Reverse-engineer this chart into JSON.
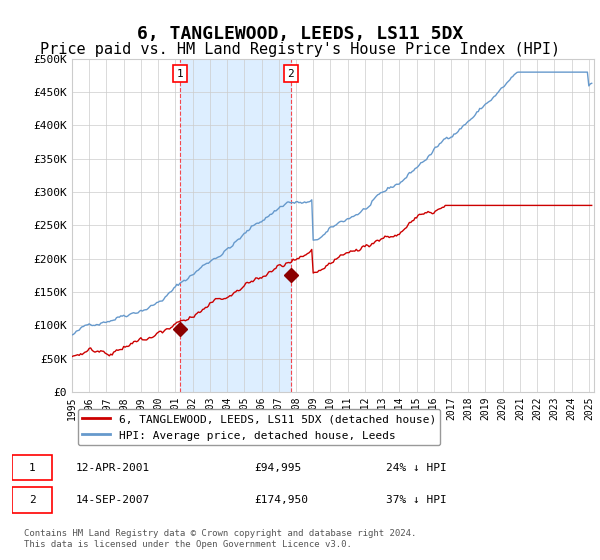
{
  "title": "6, TANGLEWOOD, LEEDS, LS11 5DX",
  "subtitle": "Price paid vs. HM Land Registry's House Price Index (HPI)",
  "title_fontsize": 13,
  "subtitle_fontsize": 11,
  "background_color": "#ffffff",
  "plot_bg_color": "#ffffff",
  "grid_color": "#cccccc",
  "hpi_line_color": "#6699cc",
  "price_line_color": "#cc0000",
  "marker_color": "#8b0000",
  "shaded_region_color": "#ddeeff",
  "sale1_date_num": 2001.28,
  "sale1_price": 94995,
  "sale1_label": "12-APR-2001",
  "sale1_pct": "24% ↓ HPI",
  "sale2_date_num": 2007.71,
  "sale2_price": 174950,
  "sale2_label": "14-SEP-2007",
  "sale2_pct": "37% ↓ HPI",
  "xmin": 1995,
  "xmax": 2025.3,
  "ymin": 0,
  "ymax": 500000,
  "yticks": [
    0,
    50000,
    100000,
    150000,
    200000,
    250000,
    300000,
    350000,
    400000,
    450000,
    500000
  ],
  "ytick_labels": [
    "£0",
    "£50K",
    "£100K",
    "£150K",
    "£200K",
    "£250K",
    "£300K",
    "£350K",
    "£400K",
    "£450K",
    "£500K"
  ],
  "xticks": [
    1995,
    1996,
    1997,
    1998,
    1999,
    2000,
    2001,
    2002,
    2003,
    2004,
    2005,
    2006,
    2007,
    2008,
    2009,
    2010,
    2011,
    2012,
    2013,
    2014,
    2015,
    2016,
    2017,
    2018,
    2019,
    2020,
    2021,
    2022,
    2023,
    2024,
    2025
  ],
  "legend_line1": "6, TANGLEWOOD, LEEDS, LS11 5DX (detached house)",
  "legend_line2": "HPI: Average price, detached house, Leeds",
  "footnote": "Contains HM Land Registry data © Crown copyright and database right 2024.\nThis data is licensed under the Open Government Licence v3.0.",
  "table_row1_num": "1",
  "table_row1_date": "12-APR-2001",
  "table_row1_price": "£94,995",
  "table_row1_pct": "24% ↓ HPI",
  "table_row2_num": "2",
  "table_row2_date": "14-SEP-2007",
  "table_row2_price": "£174,950",
  "table_row2_pct": "37% ↓ HPI"
}
